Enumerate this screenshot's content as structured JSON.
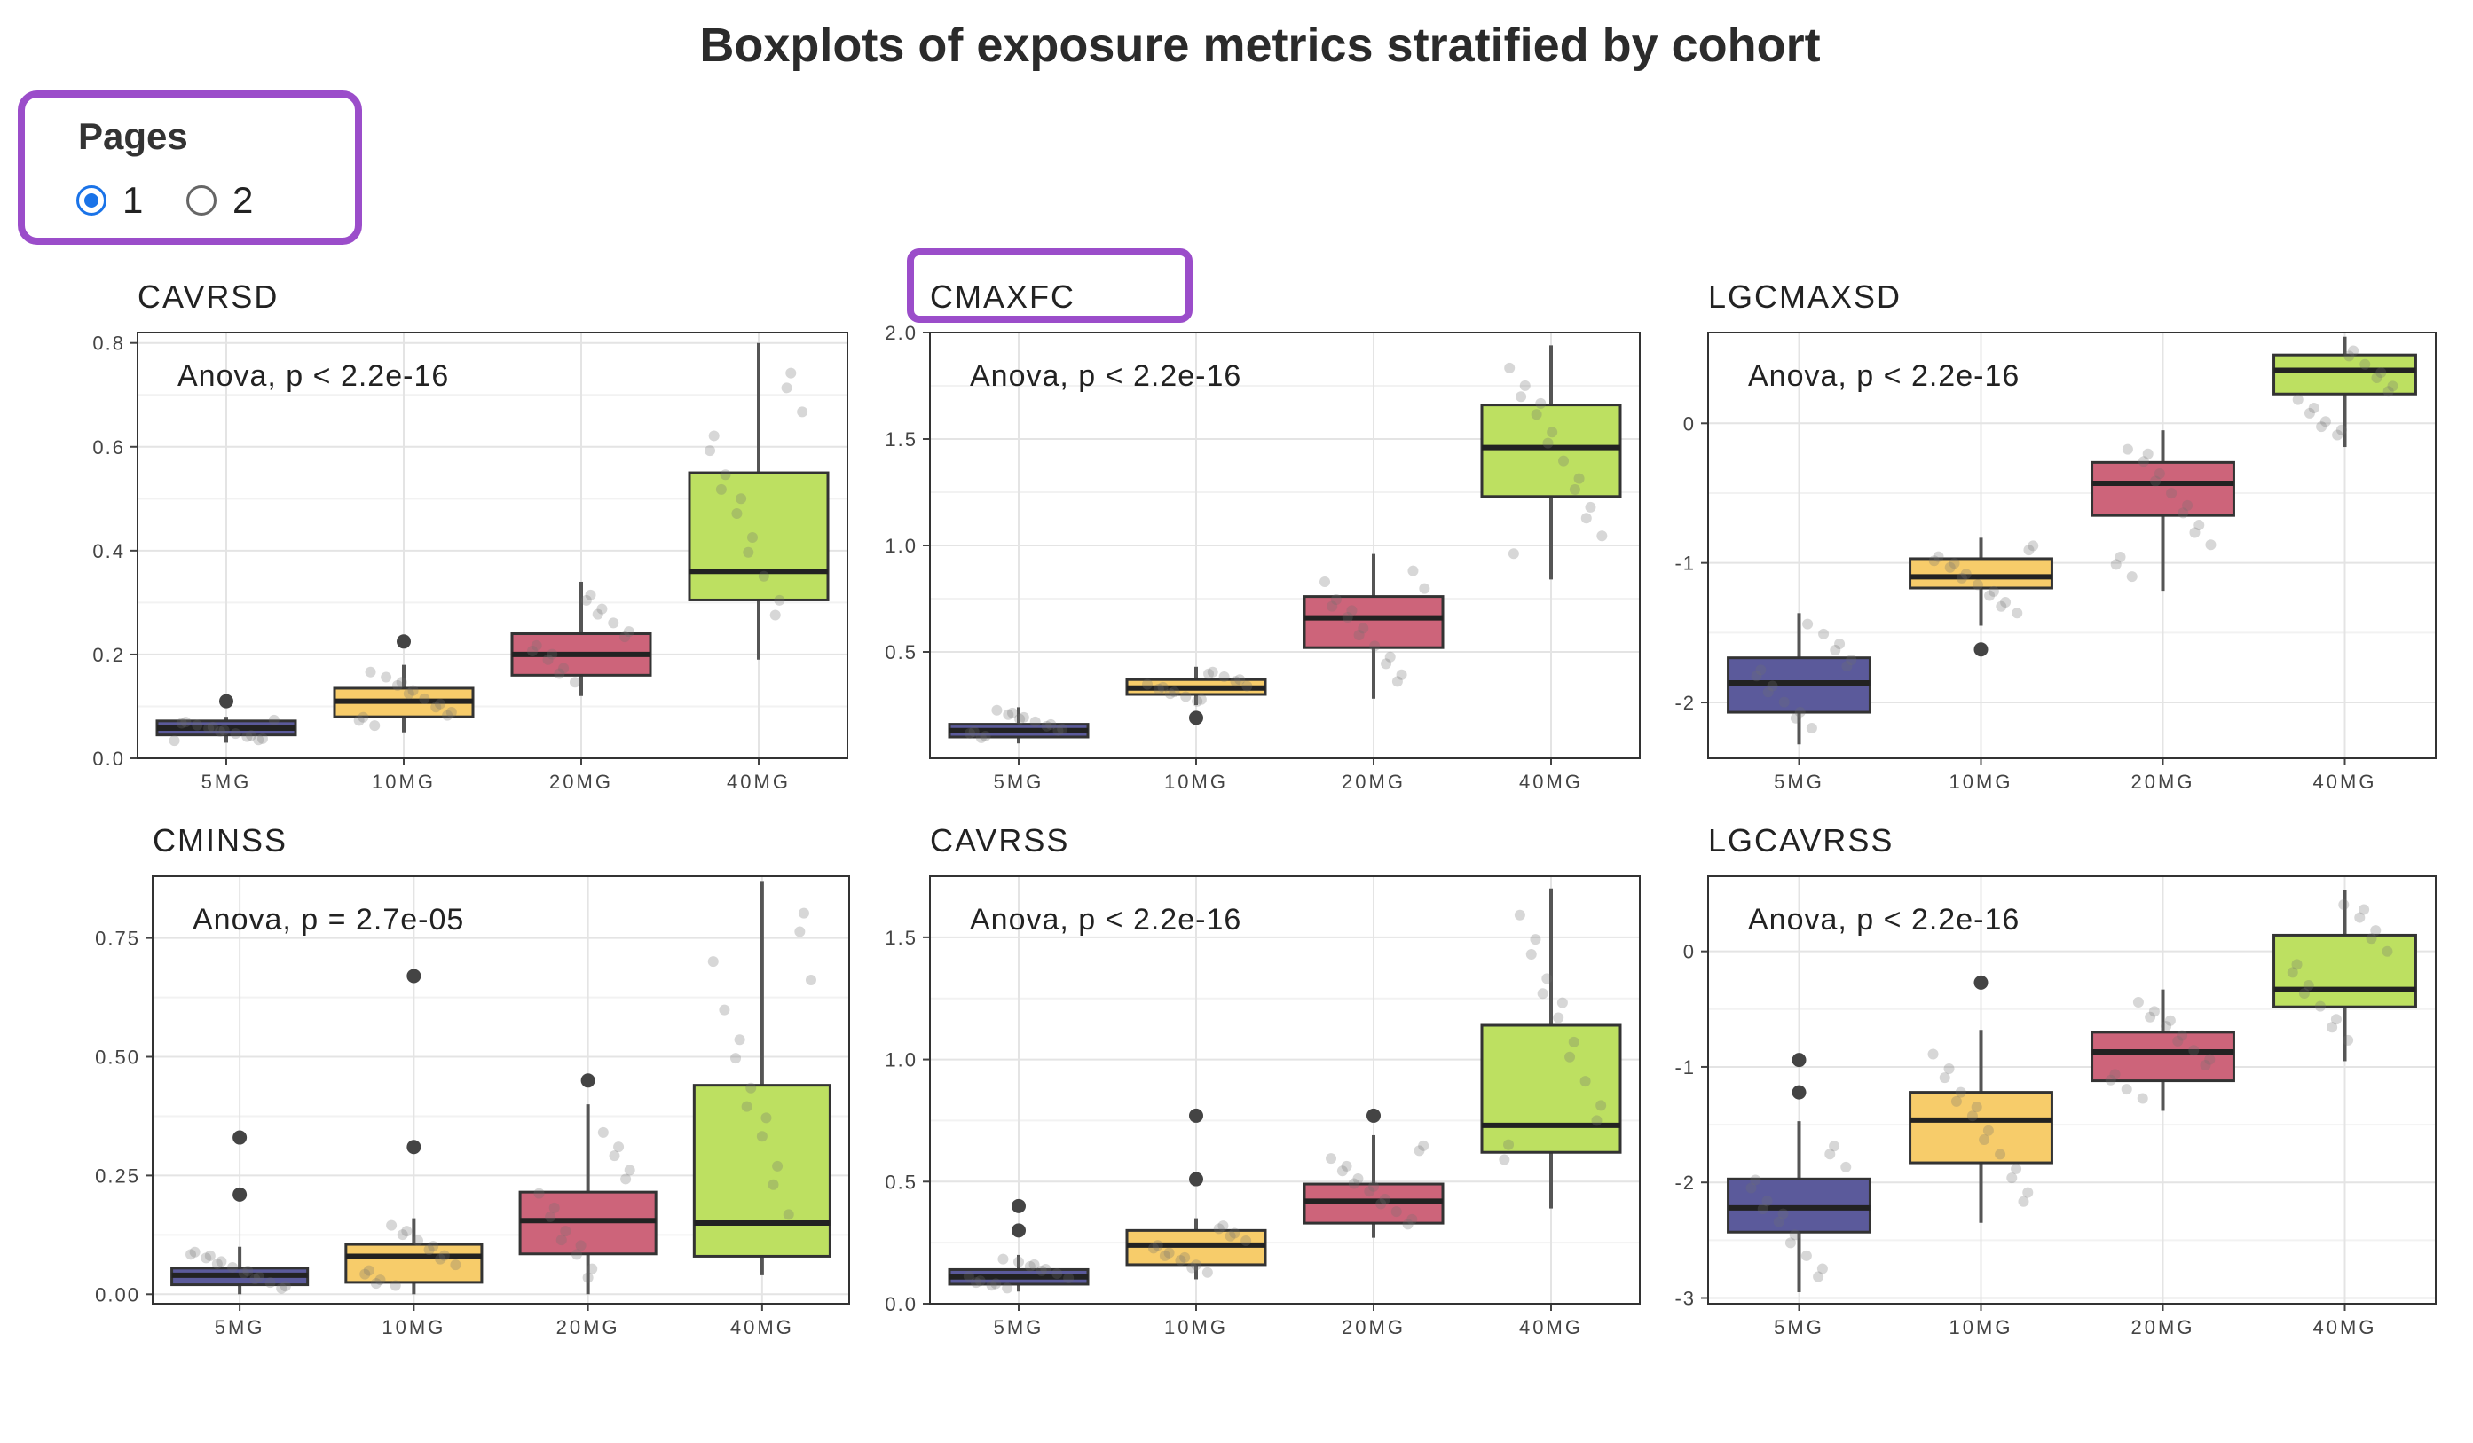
{
  "title": "Boxplots of exposure metrics stratified by cohort",
  "pages_control": {
    "label": "Pages",
    "options": [
      {
        "label": "1",
        "checked": true
      },
      {
        "label": "2",
        "checked": false
      }
    ]
  },
  "colors": {
    "5MG": "#5b5a9b",
    "10MG": "#f7cc6a",
    "20MG": "#cd647a",
    "40MG": "#bde061",
    "highlight": "#9b4dca"
  },
  "chart_data": [
    {
      "type": "box",
      "title": "CAVRSD",
      "annotation": "Anova, p < 2.2e-16",
      "categories": [
        "5MG",
        "10MG",
        "20MG",
        "40MG"
      ],
      "ylim": [
        0.0,
        0.82
      ],
      "yticks": [
        "0.0",
        "0.2",
        "0.4",
        "0.6",
        "0.8"
      ],
      "ytick_values": [
        0.0,
        0.2,
        0.4,
        0.6,
        0.8
      ],
      "boxes": [
        {
          "q1": 0.045,
          "median": 0.058,
          "q3": 0.072,
          "wlow": 0.03,
          "whigh": 0.08,
          "outliers": [
            0.11
          ]
        },
        {
          "q1": 0.08,
          "median": 0.11,
          "q3": 0.135,
          "wlow": 0.05,
          "whigh": 0.18,
          "outliers": [
            0.225
          ]
        },
        {
          "q1": 0.16,
          "median": 0.2,
          "q3": 0.24,
          "wlow": 0.12,
          "whigh": 0.34,
          "outliers": []
        },
        {
          "q1": 0.305,
          "median": 0.36,
          "q3": 0.55,
          "wlow": 0.19,
          "whigh": 0.8,
          "outliers": []
        }
      ]
    },
    {
      "type": "box",
      "title": "CMAXFC",
      "annotation": "Anova, p < 2.2e-16",
      "categories": [
        "5MG",
        "10MG",
        "20MG",
        "40MG"
      ],
      "ylim": [
        0.0,
        2.0
      ],
      "yticks": [
        "0.5",
        "1.0",
        "1.5",
        "2.0"
      ],
      "ytick_values": [
        0.5,
        1.0,
        1.5,
        2.0
      ],
      "boxes": [
        {
          "q1": 0.1,
          "median": 0.13,
          "q3": 0.16,
          "wlow": 0.07,
          "whigh": 0.24,
          "outliers": []
        },
        {
          "q1": 0.3,
          "median": 0.33,
          "q3": 0.37,
          "wlow": 0.25,
          "whigh": 0.43,
          "outliers": [
            0.19
          ]
        },
        {
          "q1": 0.52,
          "median": 0.66,
          "q3": 0.76,
          "wlow": 0.28,
          "whigh": 0.96,
          "outliers": []
        },
        {
          "q1": 1.23,
          "median": 1.46,
          "q3": 1.66,
          "wlow": 0.84,
          "whigh": 1.94,
          "outliers": []
        }
      ]
    },
    {
      "type": "box",
      "title": "LGCMAXSD",
      "annotation": "Anova, p < 2.2e-16",
      "categories": [
        "5MG",
        "10MG",
        "20MG",
        "40MG"
      ],
      "ylim": [
        -2.4,
        0.65
      ],
      "yticks": [
        "-2",
        "-1",
        "0"
      ],
      "ytick_values": [
        -2,
        -1,
        0
      ],
      "boxes": [
        {
          "q1": -2.07,
          "median": -1.86,
          "q3": -1.68,
          "wlow": -2.3,
          "whigh": -1.36,
          "outliers": []
        },
        {
          "q1": -1.18,
          "median": -1.1,
          "q3": -0.97,
          "wlow": -1.45,
          "whigh": -0.82,
          "outliers": [
            -1.62
          ]
        },
        {
          "q1": -0.66,
          "median": -0.43,
          "q3": -0.28,
          "wlow": -1.2,
          "whigh": -0.05,
          "outliers": []
        },
        {
          "q1": 0.21,
          "median": 0.38,
          "q3": 0.49,
          "wlow": -0.17,
          "whigh": 0.62,
          "outliers": []
        }
      ]
    },
    {
      "type": "box",
      "title": "CMINSS",
      "annotation": "Anova, p = 2.7e-05",
      "categories": [
        "5MG",
        "10MG",
        "20MG",
        "40MG"
      ],
      "ylim": [
        -0.02,
        0.88
      ],
      "yticks": [
        "0.00",
        "0.25",
        "0.50",
        "0.75"
      ],
      "ytick_values": [
        0.0,
        0.25,
        0.5,
        0.75
      ],
      "boxes": [
        {
          "q1": 0.02,
          "median": 0.04,
          "q3": 0.055,
          "wlow": 0.0,
          "whigh": 0.1,
          "outliers": [
            0.21,
            0.33
          ]
        },
        {
          "q1": 0.025,
          "median": 0.08,
          "q3": 0.105,
          "wlow": 0.0,
          "whigh": 0.16,
          "outliers": [
            0.31,
            0.67
          ]
        },
        {
          "q1": 0.085,
          "median": 0.155,
          "q3": 0.215,
          "wlow": 0.0,
          "whigh": 0.4,
          "outliers": [
            0.45
          ]
        },
        {
          "q1": 0.08,
          "median": 0.15,
          "q3": 0.44,
          "wlow": 0.04,
          "whigh": 0.87,
          "outliers": []
        }
      ]
    },
    {
      "type": "box",
      "title": "CAVRSS",
      "annotation": "Anova, p < 2.2e-16",
      "categories": [
        "5MG",
        "10MG",
        "20MG",
        "40MG"
      ],
      "ylim": [
        0.0,
        1.75
      ],
      "yticks": [
        "0.0",
        "0.5",
        "1.0",
        "1.5"
      ],
      "ytick_values": [
        0.0,
        0.5,
        1.0,
        1.5
      ],
      "boxes": [
        {
          "q1": 0.08,
          "median": 0.11,
          "q3": 0.14,
          "wlow": 0.05,
          "whigh": 0.2,
          "outliers": [
            0.3,
            0.4
          ]
        },
        {
          "q1": 0.16,
          "median": 0.24,
          "q3": 0.3,
          "wlow": 0.1,
          "whigh": 0.35,
          "outliers": [
            0.51,
            0.77
          ]
        },
        {
          "q1": 0.33,
          "median": 0.42,
          "q3": 0.49,
          "wlow": 0.27,
          "whigh": 0.69,
          "outliers": [
            0.77
          ]
        },
        {
          "q1": 0.62,
          "median": 0.73,
          "q3": 1.14,
          "wlow": 0.39,
          "whigh": 1.7,
          "outliers": []
        }
      ]
    },
    {
      "type": "box",
      "title": "LGCAVRSS",
      "annotation": "Anova, p < 2.2e-16",
      "categories": [
        "5MG",
        "10MG",
        "20MG",
        "40MG"
      ],
      "ylim": [
        -3.05,
        0.65
      ],
      "yticks": [
        "-3",
        "-2",
        "-1",
        "0"
      ],
      "ytick_values": [
        -3,
        -2,
        -1,
        0
      ],
      "boxes": [
        {
          "q1": -2.43,
          "median": -2.22,
          "q3": -1.97,
          "wlow": -2.95,
          "whigh": -1.47,
          "outliers": [
            -1.22,
            -0.94
          ]
        },
        {
          "q1": -1.83,
          "median": -1.46,
          "q3": -1.22,
          "wlow": -2.35,
          "whigh": -0.68,
          "outliers": [
            -0.27
          ]
        },
        {
          "q1": -1.12,
          "median": -0.87,
          "q3": -0.7,
          "wlow": -1.38,
          "whigh": -0.33,
          "outliers": []
        },
        {
          "q1": -0.48,
          "median": -0.33,
          "q3": 0.14,
          "wlow": -0.95,
          "whigh": 0.53,
          "outliers": []
        }
      ]
    }
  ]
}
